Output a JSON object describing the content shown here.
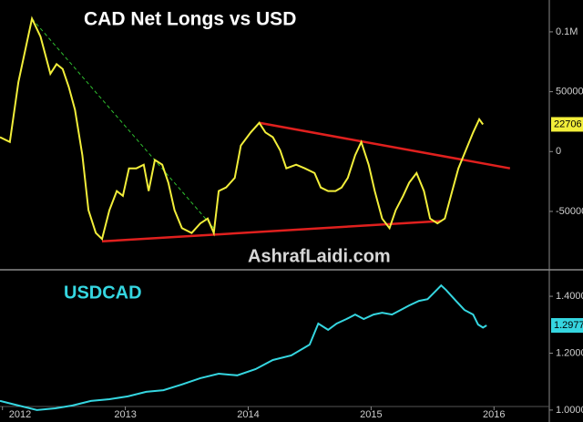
{
  "chart_data": [
    {
      "type": "line",
      "title": "CAD Net Longs vs USD",
      "annotation": "AshrafLaidi.com",
      "xlim": [
        2012.48,
        2016.95
      ],
      "ylim": [
        -98000,
        126600
      ],
      "yticks": [
        {
          "value": 100000,
          "label": "0.1M"
        },
        50000,
        0,
        -50000
      ],
      "series": [
        {
          "color": "#f2ee3a",
          "x": [
            2012.48,
            2012.56,
            2012.63,
            2012.74,
            2012.81,
            2012.89,
            2012.94,
            2012.99,
            2013.04,
            2013.09,
            2013.15,
            2013.2,
            2013.26,
            2013.31,
            2013.37,
            2013.43,
            2013.48,
            2013.53,
            2013.59,
            2013.65,
            2013.69,
            2013.74,
            2013.8,
            2013.85,
            2013.9,
            2013.96,
            2014.04,
            2014.11,
            2014.17,
            2014.22,
            2014.26,
            2014.32,
            2014.39,
            2014.44,
            2014.52,
            2014.59,
            2014.64,
            2014.7,
            2014.76,
            2014.81,
            2014.89,
            2014.96,
            2015.04,
            2015.09,
            2015.15,
            2015.21,
            2015.26,
            2015.31,
            2015.37,
            2015.42,
            2015.48,
            2015.53,
            2015.59,
            2015.65,
            2015.7,
            2015.76,
            2015.81,
            2015.87,
            2015.93,
            2015.98,
            2016.04,
            2016.1,
            2016.16,
            2016.21,
            2016.27,
            2016.33,
            2016.38,
            2016.41
          ],
          "values": [
            12000,
            8000,
            58000,
            111000,
            96000,
            65000,
            73000,
            69000,
            54000,
            35000,
            -3000,
            -49000,
            -68000,
            -73000,
            -49000,
            -33000,
            -37000,
            -14000,
            -14000,
            -11000,
            -33000,
            -7000,
            -11000,
            -26000,
            -49000,
            -64000,
            -68000,
            -60000,
            -56000,
            -68000,
            -33000,
            -30000,
            -22000,
            5000,
            16000,
            24000,
            16000,
            12000,
            1000,
            -14000,
            -11000,
            -14000,
            -18000,
            -30000,
            -33000,
            -33000,
            -30000,
            -22000,
            -3000,
            8000,
            -11000,
            -33000,
            -56000,
            -64000,
            -49000,
            -37000,
            -26000,
            -18000,
            -33000,
            -56000,
            -60000,
            -56000,
            -33000,
            -14000,
            1000,
            16000,
            27000,
            22706
          ]
        }
      ],
      "trendlines": [
        {
          "color": "#e0201e",
          "dashed": false,
          "x": [
            2014.59,
            2016.63
          ],
          "y": [
            24000,
            -14000
          ]
        },
        {
          "color": "#e0201e",
          "dashed": false,
          "x": [
            2013.31,
            2016.07
          ],
          "y": [
            -75000,
            -58000
          ]
        },
        {
          "color": "#2fbf2f",
          "dashed": true,
          "x": [
            2012.74,
            2014.22
          ],
          "y": [
            111000,
            -64000
          ]
        }
      ]
    },
    {
      "type": "line",
      "title": "USDCAD",
      "xlim": [
        2012.48,
        2016.95
      ],
      "ylim": [
        0.958,
        1.49
      ],
      "xticks": [
        {
          "value": 2012.5,
          "label": "2012"
        },
        {
          "value": 2013.5,
          "label": "2013"
        },
        {
          "value": 2014.5,
          "label": "2014"
        },
        {
          "value": 2015.5,
          "label": "2015"
        },
        {
          "value": 2016.5,
          "label": "2016"
        }
      ],
      "yticks": [
        {
          "value": 1,
          "label": "1.0000"
        },
        {
          "value": 1.2,
          "label": "1.2000"
        },
        {
          "value": 1.4,
          "label": "1.4000"
        }
      ],
      "series": [
        {
          "color": "#35d6e0",
          "x": [
            2012.48,
            2012.63,
            2012.78,
            2012.93,
            2013.07,
            2013.22,
            2013.37,
            2013.52,
            2013.67,
            2013.81,
            2013.96,
            2014.11,
            2014.26,
            2014.41,
            2014.56,
            2014.7,
            2014.85,
            2015.0,
            2015.07,
            2015.15,
            2015.22,
            2015.3,
            2015.37,
            2015.44,
            2015.52,
            2015.59,
            2015.67,
            2015.74,
            2015.81,
            2015.89,
            2015.96,
            2016.02,
            2016.07,
            2016.11,
            2016.19,
            2016.26,
            2016.33,
            2016.37,
            2016.41,
            2016.44
          ],
          "values": [
            1.032,
            1.016,
            1.0,
            1.006,
            1.016,
            1.032,
            1.038,
            1.048,
            1.064,
            1.07,
            1.09,
            1.112,
            1.128,
            1.122,
            1.144,
            1.176,
            1.192,
            1.23,
            1.304,
            1.282,
            1.304,
            1.32,
            1.336,
            1.32,
            1.336,
            1.342,
            1.336,
            1.352,
            1.368,
            1.384,
            1.39,
            1.416,
            1.438,
            1.422,
            1.384,
            1.352,
            1.336,
            1.301,
            1.29,
            1.2977
          ]
        }
      ]
    }
  ]
}
